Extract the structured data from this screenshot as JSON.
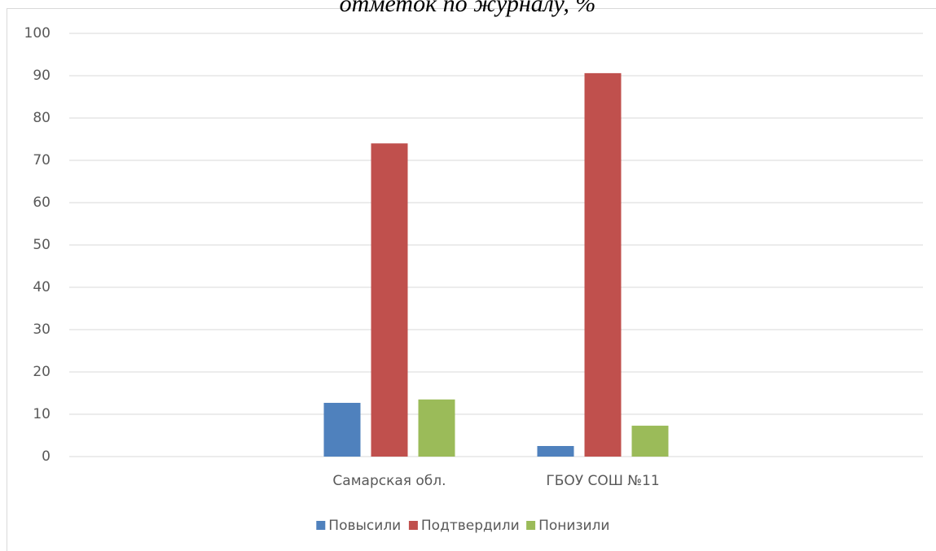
{
  "chart_data": {
    "type": "bar",
    "title": "отметок по журналу, %",
    "categories": [
      null,
      "Самарская обл.",
      "ГБОУ СОШ №11",
      null
    ],
    "series": [
      {
        "name": "Повысили",
        "color": "#4f81bd",
        "values": [
          null,
          12.7,
          2.5,
          null
        ]
      },
      {
        "name": "Подтвердили",
        "color": "#c0504d",
        "values": [
          null,
          74,
          90.6,
          null
        ]
      },
      {
        "name": "Понизили",
        "color": "#9bbb59",
        "values": [
          null,
          13.5,
          7.3,
          null
        ]
      }
    ],
    "ylim": [
      0,
      100
    ],
    "yticks": [
      0,
      10,
      20,
      30,
      40,
      50,
      60,
      70,
      80,
      90,
      100
    ],
    "grid": true,
    "legend": "bottom"
  }
}
